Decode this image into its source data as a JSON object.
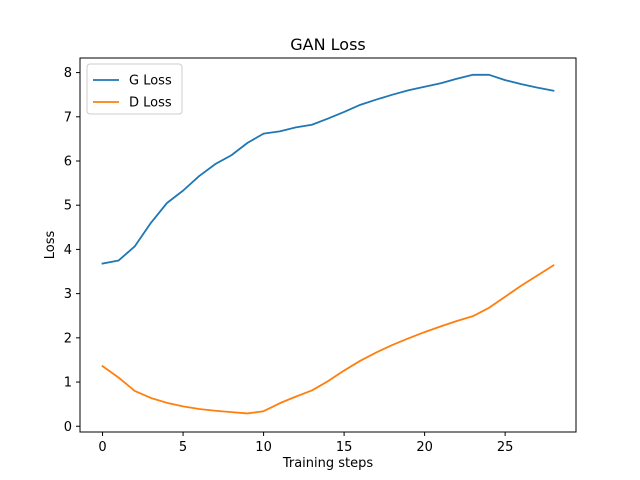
{
  "chart_data": {
    "type": "line",
    "title": "GAN Loss",
    "xlabel": "Training steps",
    "ylabel": "Loss",
    "xlim": [
      -1.4,
      29.4
    ],
    "ylim": [
      -0.13,
      8.33
    ],
    "xticks": [
      0,
      5,
      10,
      15,
      20,
      25
    ],
    "yticks": [
      0,
      1,
      2,
      3,
      4,
      5,
      6,
      7,
      8
    ],
    "grid": false,
    "legend_position": "upper-left",
    "x": [
      0,
      1,
      2,
      3,
      4,
      5,
      6,
      7,
      8,
      9,
      10,
      11,
      12,
      13,
      14,
      15,
      16,
      17,
      18,
      19,
      20,
      21,
      22,
      23,
      24,
      25,
      26,
      27,
      28
    ],
    "series": [
      {
        "name": "G Loss",
        "color": "#1f77b4",
        "values": [
          3.68,
          3.75,
          4.07,
          4.6,
          5.05,
          5.33,
          5.66,
          5.93,
          6.13,
          6.41,
          6.62,
          6.67,
          6.76,
          6.82,
          6.96,
          7.11,
          7.27,
          7.39,
          7.5,
          7.6,
          7.68,
          7.76,
          7.86,
          7.95,
          7.95,
          7.83,
          7.74,
          7.66,
          7.59
        ]
      },
      {
        "name": "D Loss",
        "color": "#ff7f0e",
        "values": [
          1.36,
          1.1,
          0.8,
          0.64,
          0.53,
          0.45,
          0.39,
          0.35,
          0.32,
          0.29,
          0.34,
          0.52,
          0.67,
          0.81,
          1.02,
          1.26,
          1.48,
          1.67,
          1.84,
          1.99,
          2.13,
          2.26,
          2.38,
          2.49,
          2.68,
          2.93,
          3.18,
          3.41,
          3.64
        ]
      }
    ]
  }
}
